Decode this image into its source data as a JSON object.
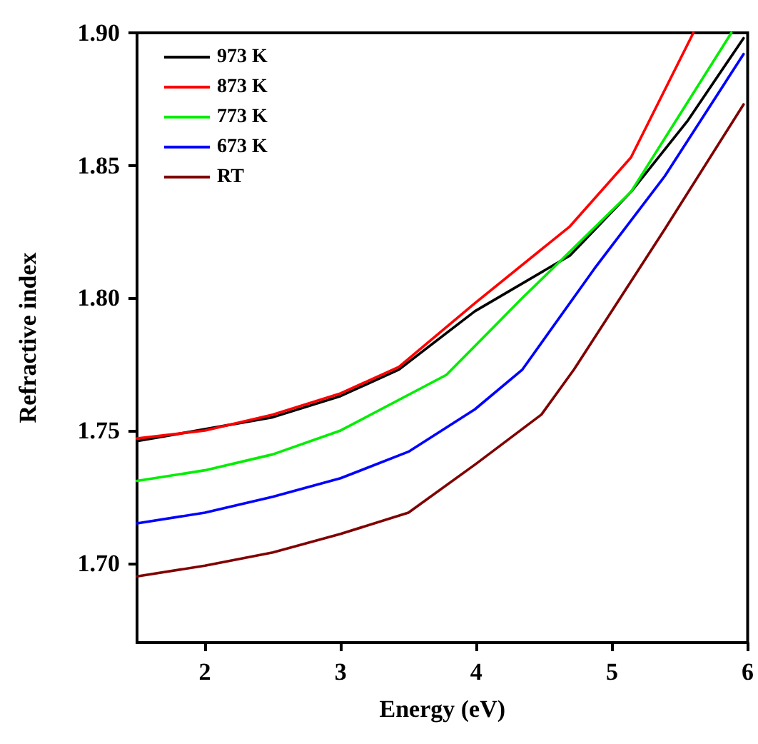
{
  "chart_data": {
    "type": "line",
    "xlabel": "Energy (eV)",
    "ylabel": "Refractive index",
    "xlim": [
      1.5,
      6
    ],
    "xticks": [
      2,
      3,
      4,
      5,
      6
    ],
    "ylim": [
      1.67,
      1.9
    ],
    "yticks": [
      {
        "value": 1.7,
        "label": "1.70"
      },
      1.75,
      {
        "value": 1.8,
        "label": "1.80"
      },
      1.85,
      {
        "value": 1.9,
        "label": "1.90"
      }
    ],
    "grid": false,
    "legend": "top left",
    "marker": "none",
    "line_style": "solid",
    "series": [
      {
        "name": "973 K",
        "color": "#000000",
        "x": [
          1.5,
          2.5,
          3,
          3.43,
          3.99,
          4.69,
          5.14,
          5.56,
          5.97
        ],
        "values": [
          1.746,
          1.755,
          1.763,
          1.773,
          1.795,
          1.816,
          1.84,
          1.867,
          1.898
        ]
      },
      {
        "name": "873 K",
        "color": "#ff0000",
        "x": [
          1.5,
          2,
          2.5,
          3,
          3.43,
          3.99,
          4.69,
          5.14,
          5.6
        ],
        "values": [
          1.747,
          1.75,
          1.756,
          1.764,
          1.774,
          1.798,
          1.827,
          1.853,
          1.9
        ]
      },
      {
        "name": "773 K",
        "color": "#00ee00",
        "x": [
          1.5,
          2,
          2.5,
          3,
          3.78,
          4.34,
          5.14,
          5.88
        ],
        "values": [
          1.731,
          1.735,
          1.741,
          1.75,
          1.771,
          1.8,
          1.84,
          1.9
        ]
      },
      {
        "name": "673 K",
        "color": "#0000ff",
        "x": [
          1.5,
          2,
          2.5,
          3,
          3.5,
          3.99,
          4.34,
          4.87,
          5.39,
          5.97
        ],
        "values": [
          1.715,
          1.719,
          1.725,
          1.732,
          1.742,
          1.758,
          1.773,
          1.811,
          1.846,
          1.892
        ]
      },
      {
        "name": "RT",
        "color": "#800000",
        "x": [
          1.5,
          2,
          2.5,
          3,
          3.5,
          4,
          4.48,
          4.72,
          5.39,
          5.97
        ],
        "values": [
          1.695,
          1.699,
          1.704,
          1.711,
          1.719,
          1.7375,
          1.756,
          1.773,
          1.826,
          1.873
        ]
      }
    ]
  }
}
